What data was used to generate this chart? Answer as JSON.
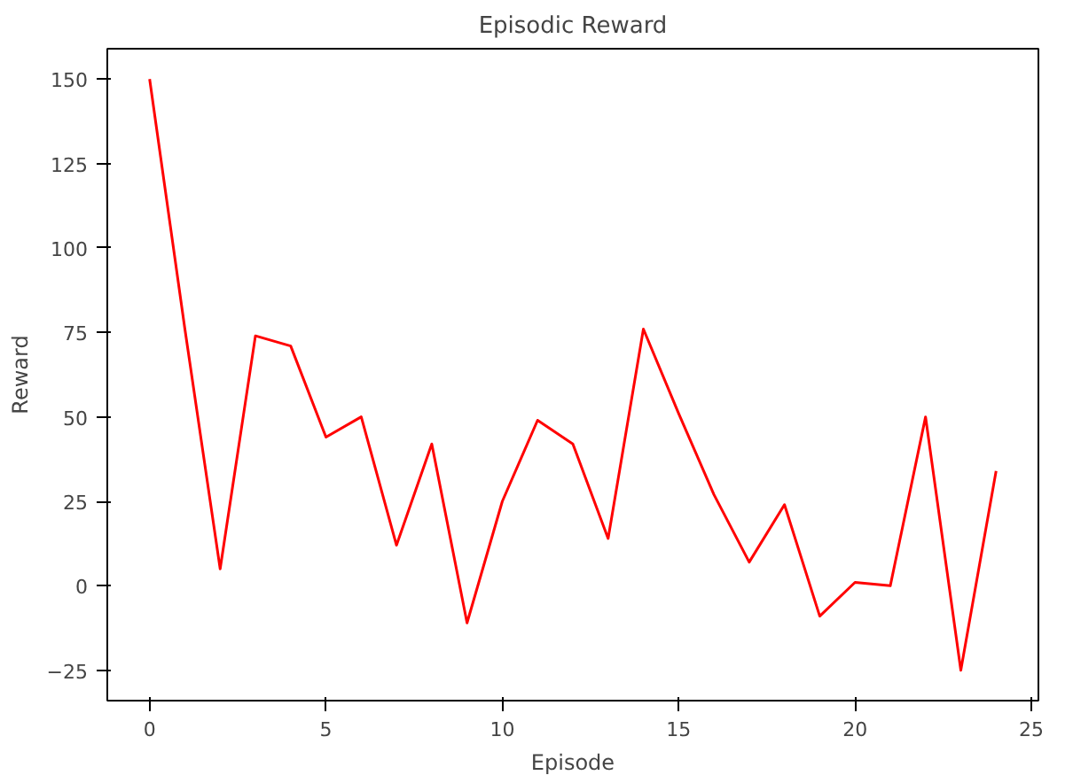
{
  "chart_data": {
    "type": "line",
    "title": "Episodic Reward",
    "xlabel": "Episode",
    "ylabel": "Reward",
    "x": [
      0,
      1,
      2,
      3,
      4,
      5,
      6,
      7,
      8,
      9,
      10,
      11,
      12,
      13,
      14,
      15,
      16,
      17,
      18,
      19,
      20,
      21,
      22,
      23,
      24
    ],
    "series": [
      {
        "color": "#ff0000",
        "values": [
          150,
          76,
          5,
          74,
          71,
          44,
          50,
          12,
          42,
          -11,
          25,
          49,
          42,
          14,
          76,
          51,
          27,
          7,
          24,
          -9,
          1,
          0,
          50,
          -25,
          34
        ]
      }
    ],
    "xlim": [
      -1.2,
      25.2
    ],
    "ylim": [
      -34,
      159
    ],
    "xticks": [
      0,
      5,
      10,
      15,
      20,
      25
    ],
    "yticks": [
      -25,
      0,
      25,
      50,
      75,
      100,
      125,
      150
    ],
    "grid": false,
    "marker": "none",
    "line_style": "solid"
  }
}
